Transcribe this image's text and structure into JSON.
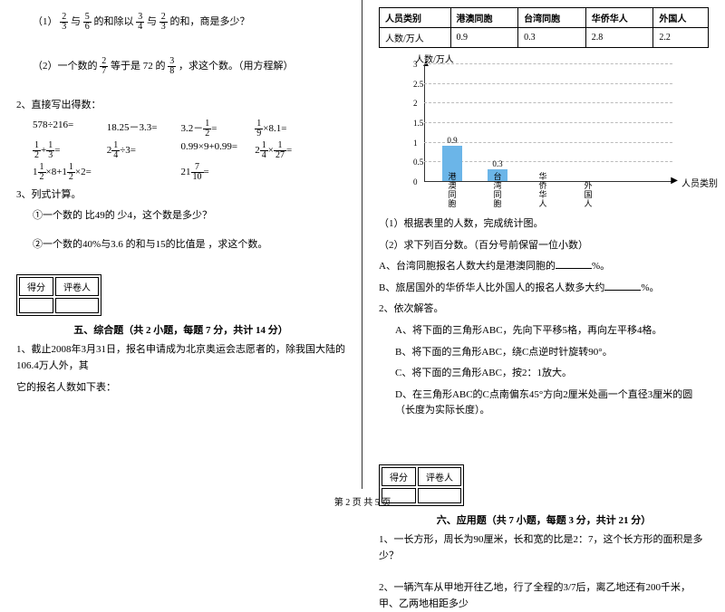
{
  "left": {
    "q1": {
      "prefix": "（1）",
      "f1n": "2",
      "f1d": "3",
      "t1": "与",
      "f2n": "5",
      "f2d": "6",
      "t2": "的和除以",
      "f3n": "3",
      "f3d": "4",
      "t3": "与",
      "f4n": "2",
      "f4d": "3",
      "t4": "的和，商是多少？"
    },
    "q2": {
      "prefix": "（2）一个数的",
      "f1n": "2",
      "f1d": "7",
      "t1": "等于是 72 的",
      "f2n": "3",
      "f2d": "8",
      "t2": "，求这个数。（用方程解）"
    },
    "p2": {
      "title": "2、直接写出得数：",
      "r1": {
        "a": "578÷216=",
        "b": "18.25－3.3=",
        "c_pre": "3.2－",
        "c_fn": "1",
        "c_fd": "2",
        "c_suf": "=",
        "d_fn": "1",
        "d_fd": "9",
        "d_suf": "×8.1="
      },
      "r2": {
        "a_f1n": "1",
        "a_f1d": "2",
        "a_mid": "+",
        "a_f2n": "1",
        "a_f2d": "3",
        "a_suf": "=",
        "b_pre": "2",
        "b_fn": "1",
        "b_fd": "4",
        "b_suf": "÷3=",
        "c": "0.99×9+0.99=",
        "d_pre": "2",
        "d_f1n": "1",
        "d_f1d": "4",
        "d_mid": "×",
        "d_f2n": "1",
        "d_f2d": "27",
        "d_suf": "="
      },
      "r3": {
        "a_pre": "1",
        "a_fn": "1",
        "a_fd": "2",
        "a_mid": "×8+1",
        "a_f2n": "1",
        "a_f2d": "2",
        "a_suf": "×2=",
        "b_pre": "21",
        "b_fn": "7",
        "b_fd": "10",
        "b_suf": "="
      }
    },
    "p3": {
      "title": "3、列式计算。",
      "s1": "①一个数的 比49的 少4，这个数是多少？",
      "s2": "②一个数的40%与3.6 的和与15的比值是 ，求这个数。"
    },
    "score": {
      "c1": "得分",
      "c2": "评卷人"
    },
    "sec5": {
      "title": "五、综合题（共 2 小题，每题 7 分，共计 14 分）",
      "p1a": "1、截止2008年3月31日，报名申请成为北京奥运会志愿者的，除我国大陆的106.4万人外，其",
      "p1b": "它的报名人数如下表："
    }
  },
  "right": {
    "table": {
      "h1": "人员类别",
      "h2": "港澳同胞",
      "h3": "台湾同胞",
      "h4": "华侨华人",
      "h5": "外国人",
      "r1": "人数/万人",
      "v1": "0.9",
      "v2": "0.3",
      "v3": "2.8",
      "v4": "2.2"
    },
    "chart": {
      "ylabel": "人数/万人",
      "xlabel": "人员类别",
      "ticks": [
        "0",
        "0.5",
        "1",
        "1.5",
        "2",
        "2.5",
        "3"
      ],
      "cats": [
        "港澳同胞",
        "台湾同胞",
        "华侨华人",
        "外国人"
      ],
      "vals": [
        0.9,
        0.3,
        null,
        null
      ],
      "labels": [
        "0.9",
        "0.3",
        "",
        ""
      ],
      "bar_color": "#6bb5e8",
      "max": 3
    },
    "q1": "（1）根据表里的人数，完成统计图。",
    "q2": "（2）求下列百分数。（百分号前保留一位小数）",
    "q2a": "A、台湾同胞报名人数大约是港澳同胞的",
    "q2a_suf": "%。",
    "q2b": "B、旅居国外的华侨华人比外国人的报名人数多大约",
    "q2b_suf": "%。",
    "p2": "2、依次解答。",
    "p2a": "A、将下面的三角形ABC，先向下平移5格，再向左平移4格。",
    "p2b": "B、将下面的三角形ABC，绕C点逆时针旋转90°。",
    "p2c": "C、将下面的三角形ABC，按2：1放大。",
    "p2d": "D、在三角形ABC的C点南偏东45°方向2厘米处画一个直径3厘米的圆（长度为实际长度）。",
    "score": {
      "c1": "得分",
      "c2": "评卷人"
    },
    "sec6": {
      "title": "六、应用题（共 7 小题，每题 3 分，共计 21 分）",
      "p1": "1、一长方形，周长为90厘米，长和宽的比是2：7，这个长方形的面积是多少？",
      "p2": "2、一辆汽车从甲地开往乙地，行了全程的3/7后，离乙地还有200千米，甲、乙两地相距多少"
    }
  },
  "footer": "第 2 页 共 5 页"
}
